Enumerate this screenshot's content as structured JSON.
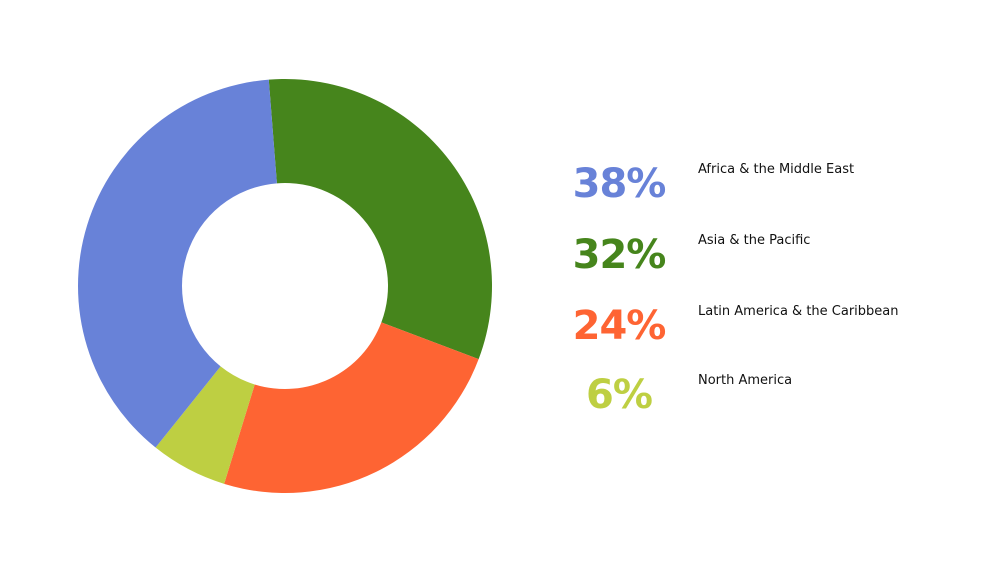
{
  "chart_data": {
    "type": "pie",
    "variant": "donut",
    "title": "",
    "categories": [
      "Africa & the Middle East",
      "Asia & the Pacific",
      "Latin America & the Caribbean",
      "North America"
    ],
    "values": [
      38,
      32,
      24,
      6
    ],
    "colors": [
      "#6882d8",
      "#46851c",
      "#fe6433",
      "#becf42"
    ],
    "labels": [
      "38%",
      "32%",
      "24%",
      "6%"
    ],
    "legend_position": "right"
  },
  "legend": [
    {
      "pct": "38%",
      "label": "Africa & the Middle East",
      "color": "#6882d8"
    },
    {
      "pct": "32%",
      "label": "Asia & the Pacific",
      "color": "#46851c"
    },
    {
      "pct": "24%",
      "label": "Latin America & the Caribbean",
      "color": "#fe6433"
    },
    {
      "pct": "6%",
      "label": "North America",
      "color": "#becf42"
    }
  ]
}
